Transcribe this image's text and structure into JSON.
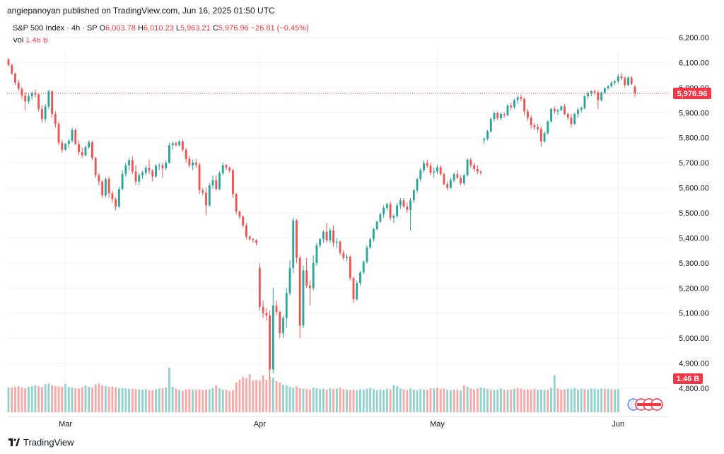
{
  "publisher": "angiepanoyan published on TradingView.com, Jun 16, 2025 01:50 UTC",
  "legend": {
    "symbol": "S&P 500 Index · 4h · SP",
    "o_label": "O",
    "o_value": "6,003.78",
    "h_label": "H",
    "h_value": "6,010.23",
    "l_label": "L",
    "l_value": "5,963.21",
    "c_label": "C",
    "c_value": "5,976.96",
    "change": "−26.81 (−0.45%)",
    "vol_label": "Vol",
    "vol_value": "1.46 B"
  },
  "price_badge": "5,976.96",
  "volume_badge": "1.46 B",
  "footer_brand": "TradingView",
  "colors": {
    "up": "#26a69a",
    "down": "#ef5350",
    "vol_up": "#92d2cc",
    "vol_down": "#f7a9a7",
    "badge": "#f23645"
  },
  "chart_data": {
    "type": "candlestick",
    "ylim": [
      4760,
      6260
    ],
    "yticks": [
      "6,200.00",
      "6,100.00",
      "6,000.00",
      "5,900.00",
      "5,800.00",
      "5,700.00",
      "5,600.00",
      "5,500.00",
      "5,400.00",
      "5,300.00",
      "5,200.00",
      "5,100.00",
      "5,000.00",
      "4,900.00",
      "4,800.00"
    ],
    "ytick_values": [
      6200,
      6100,
      6000,
      5900,
      5800,
      5700,
      5600,
      5500,
      5400,
      5300,
      5200,
      5100,
      5000,
      4900,
      4800
    ],
    "xticks": [
      {
        "label": "Mar",
        "index": 17
      },
      {
        "label": "Apr",
        "index": 75
      },
      {
        "label": "May",
        "index": 128
      },
      {
        "label": "Jun",
        "index": 182
      }
    ],
    "last_close": 5976.96,
    "candles_ohlc": [
      [
        6112,
        6118,
        6085,
        6090
      ],
      [
        6090,
        6096,
        6050,
        6056
      ],
      [
        6056,
        6060,
        6010,
        6020
      ],
      [
        6020,
        6030,
        5985,
        5995
      ],
      [
        5995,
        6002,
        5955,
        5968
      ],
      [
        5968,
        5980,
        5910,
        5945
      ],
      [
        5945,
        5975,
        5935,
        5965
      ],
      [
        5965,
        5985,
        5950,
        5978
      ],
      [
        5978,
        5992,
        5960,
        5972
      ],
      [
        5972,
        5976,
        5905,
        5915
      ],
      [
        5915,
        5930,
        5860,
        5875
      ],
      [
        5875,
        5935,
        5862,
        5925
      ],
      [
        5925,
        5992,
        5915,
        5985
      ],
      [
        5985,
        5990,
        5880,
        5895
      ],
      [
        5895,
        5905,
        5840,
        5855
      ],
      [
        5855,
        5865,
        5770,
        5780
      ],
      [
        5780,
        5792,
        5740,
        5752
      ],
      [
        5752,
        5780,
        5748,
        5775
      ],
      [
        5775,
        5795,
        5760,
        5788
      ],
      [
        5788,
        5840,
        5780,
        5830
      ],
      [
        5830,
        5838,
        5770,
        5775
      ],
      [
        5775,
        5790,
        5730,
        5742
      ],
      [
        5742,
        5760,
        5720,
        5730
      ],
      [
        5730,
        5770,
        5725,
        5762
      ],
      [
        5762,
        5790,
        5755,
        5782
      ],
      [
        5782,
        5788,
        5710,
        5720
      ],
      [
        5720,
        5724,
        5640,
        5650
      ],
      [
        5650,
        5660,
        5610,
        5625
      ],
      [
        5625,
        5632,
        5560,
        5570
      ],
      [
        5570,
        5642,
        5560,
        5635
      ],
      [
        5635,
        5645,
        5560,
        5578
      ],
      [
        5578,
        5588,
        5540,
        5555
      ],
      [
        5555,
        5562,
        5510,
        5525
      ],
      [
        5525,
        5605,
        5520,
        5595
      ],
      [
        5595,
        5670,
        5590,
        5655
      ],
      [
        5655,
        5700,
        5645,
        5690
      ],
      [
        5690,
        5720,
        5670,
        5710
      ],
      [
        5710,
        5725,
        5655,
        5665
      ],
      [
        5665,
        5690,
        5610,
        5625
      ],
      [
        5625,
        5660,
        5610,
        5650
      ],
      [
        5650,
        5668,
        5635,
        5660
      ],
      [
        5660,
        5690,
        5650,
        5680
      ],
      [
        5680,
        5712,
        5655,
        5668
      ],
      [
        5668,
        5675,
        5625,
        5645
      ],
      [
        5645,
        5695,
        5640,
        5688
      ],
      [
        5688,
        5698,
        5670,
        5690
      ],
      [
        5690,
        5700,
        5640,
        5678
      ],
      [
        5678,
        5710,
        5670,
        5700
      ],
      [
        5700,
        5780,
        5695,
        5770
      ],
      [
        5770,
        5785,
        5752,
        5778
      ],
      [
        5778,
        5784,
        5765,
        5770
      ],
      [
        5770,
        5790,
        5765,
        5785
      ],
      [
        5785,
        5792,
        5745,
        5752
      ],
      [
        5752,
        5760,
        5700,
        5715
      ],
      [
        5715,
        5728,
        5680,
        5690
      ],
      [
        5690,
        5712,
        5670,
        5700
      ],
      [
        5700,
        5715,
        5680,
        5692
      ],
      [
        5692,
        5700,
        5575,
        5590
      ],
      [
        5590,
        5600,
        5570,
        5580
      ],
      [
        5580,
        5600,
        5490,
        5530
      ],
      [
        5530,
        5620,
        5525,
        5610
      ],
      [
        5610,
        5650,
        5595,
        5630
      ],
      [
        5630,
        5650,
        5590,
        5595
      ],
      [
        5595,
        5665,
        5590,
        5658
      ],
      [
        5658,
        5700,
        5650,
        5690
      ],
      [
        5690,
        5695,
        5670,
        5680
      ],
      [
        5680,
        5685,
        5660,
        5670
      ],
      [
        5670,
        5675,
        5560,
        5575
      ],
      [
        5575,
        5580,
        5495,
        5505
      ],
      [
        5505,
        5510,
        5475,
        5485
      ],
      [
        5485,
        5490,
        5440,
        5450
      ],
      [
        5450,
        5460,
        5395,
        5405
      ],
      [
        5405,
        5410,
        5390,
        5395
      ],
      [
        5395,
        5400,
        5380,
        5390
      ],
      [
        5390,
        5395,
        5370,
        5380
      ],
      [
        5280,
        5300,
        5110,
        5125
      ],
      [
        5125,
        5150,
        5080,
        5100
      ],
      [
        5100,
        5120,
        5070,
        5090
      ],
      [
        5090,
        5110,
        4840,
        4875
      ],
      [
        4875,
        5200,
        4860,
        5130
      ],
      [
        5130,
        5150,
        5090,
        5105
      ],
      [
        5105,
        5110,
        5000,
        5020
      ],
      [
        5020,
        5090,
        5000,
        5080
      ],
      [
        5080,
        5200,
        5040,
        5180
      ],
      [
        5180,
        5310,
        5170,
        5280
      ],
      [
        5280,
        5480,
        5260,
        5470
      ],
      [
        5470,
        5475,
        5300,
        5320
      ],
      [
        5320,
        5330,
        5000,
        5050
      ],
      [
        5050,
        5290,
        5040,
        5270
      ],
      [
        5270,
        5320,
        5200,
        5210
      ],
      [
        5210,
        5230,
        5130,
        5200
      ],
      [
        5200,
        5330,
        5190,
        5300
      ],
      [
        5300,
        5380,
        5290,
        5370
      ],
      [
        5370,
        5400,
        5360,
        5395
      ],
      [
        5395,
        5430,
        5380,
        5425
      ],
      [
        5425,
        5460,
        5380,
        5390
      ],
      [
        5390,
        5440,
        5380,
        5430
      ],
      [
        5430,
        5450,
        5365,
        5380
      ],
      [
        5380,
        5400,
        5360,
        5385
      ],
      [
        5385,
        5390,
        5330,
        5340
      ],
      [
        5340,
        5350,
        5310,
        5320
      ],
      [
        5320,
        5335,
        5305,
        5325
      ],
      [
        5325,
        5330,
        5230,
        5240
      ],
      [
        5240,
        5245,
        5140,
        5155
      ],
      [
        5155,
        5230,
        5150,
        5220
      ],
      [
        5220,
        5268,
        5210,
        5262
      ],
      [
        5262,
        5310,
        5255,
        5305
      ],
      [
        5305,
        5370,
        5298,
        5362
      ],
      [
        5362,
        5400,
        5355,
        5395
      ],
      [
        5395,
        5440,
        5385,
        5435
      ],
      [
        5435,
        5470,
        5430,
        5465
      ],
      [
        5465,
        5500,
        5460,
        5495
      ],
      [
        5495,
        5530,
        5480,
        5520
      ],
      [
        5520,
        5540,
        5510,
        5535
      ],
      [
        5535,
        5545,
        5470,
        5480
      ],
      [
        5480,
        5495,
        5460,
        5488
      ],
      [
        5488,
        5540,
        5480,
        5530
      ],
      [
        5530,
        5560,
        5515,
        5550
      ],
      [
        5550,
        5560,
        5520,
        5525
      ],
      [
        5525,
        5540,
        5500,
        5512
      ],
      [
        5512,
        5560,
        5430,
        5550
      ],
      [
        5550,
        5595,
        5540,
        5590
      ],
      [
        5590,
        5640,
        5580,
        5635
      ],
      [
        5635,
        5680,
        5625,
        5670
      ],
      [
        5670,
        5710,
        5660,
        5698
      ],
      [
        5698,
        5712,
        5680,
        5688
      ],
      [
        5688,
        5700,
        5650,
        5660
      ],
      [
        5660,
        5680,
        5640,
        5665
      ],
      [
        5665,
        5690,
        5655,
        5682
      ],
      [
        5682,
        5690,
        5648,
        5655
      ],
      [
        5655,
        5660,
        5610,
        5615
      ],
      [
        5615,
        5625,
        5590,
        5600
      ],
      [
        5600,
        5640,
        5595,
        5630
      ],
      [
        5630,
        5660,
        5620,
        5655
      ],
      [
        5655,
        5670,
        5635,
        5640
      ],
      [
        5640,
        5650,
        5610,
        5618
      ],
      [
        5618,
        5655,
        5610,
        5650
      ],
      [
        5650,
        5718,
        5645,
        5712
      ],
      [
        5712,
        5720,
        5680,
        5690
      ],
      [
        5690,
        5700,
        5665,
        5675
      ],
      [
        5675,
        5690,
        5655,
        5665
      ],
      [
        5665,
        5670,
        5650,
        5660
      ],
      [
        5790,
        5800,
        5775,
        5795
      ],
      [
        5795,
        5830,
        5790,
        5825
      ],
      [
        5825,
        5880,
        5820,
        5875
      ],
      [
        5875,
        5905,
        5865,
        5898
      ],
      [
        5898,
        5905,
        5870,
        5878
      ],
      [
        5878,
        5900,
        5870,
        5895
      ],
      [
        5895,
        5902,
        5880,
        5890
      ],
      [
        5890,
        5935,
        5885,
        5928
      ],
      [
        5928,
        5940,
        5910,
        5922
      ],
      [
        5922,
        5955,
        5915,
        5950
      ],
      [
        5950,
        5970,
        5935,
        5962
      ],
      [
        5962,
        5972,
        5945,
        5955
      ],
      [
        5955,
        5960,
        5890,
        5905
      ],
      [
        5905,
        5915,
        5868,
        5880
      ],
      [
        5880,
        5890,
        5835,
        5850
      ],
      [
        5850,
        5860,
        5830,
        5842
      ],
      [
        5842,
        5855,
        5820,
        5835
      ],
      [
        5835,
        5845,
        5765,
        5785
      ],
      [
        5785,
        5825,
        5780,
        5818
      ],
      [
        5818,
        5870,
        5812,
        5865
      ],
      [
        5865,
        5920,
        5860,
        5915
      ],
      [
        5915,
        5925,
        5895,
        5905
      ],
      [
        5905,
        5915,
        5890,
        5910
      ],
      [
        5910,
        5930,
        5905,
        5925
      ],
      [
        5925,
        5935,
        5890,
        5895
      ],
      [
        5895,
        5900,
        5870,
        5880
      ],
      [
        5880,
        5895,
        5840,
        5855
      ],
      [
        5855,
        5900,
        5850,
        5895
      ],
      [
        5895,
        5920,
        5880,
        5912
      ],
      [
        5912,
        5925,
        5900,
        5918
      ],
      [
        5918,
        5970,
        5912,
        5965
      ],
      [
        5965,
        5985,
        5955,
        5978
      ],
      [
        5978,
        5990,
        5965,
        5985
      ],
      [
        5985,
        5992,
        5970,
        5980
      ],
      [
        5980,
        5990,
        5915,
        5950
      ],
      [
        5950,
        5985,
        5945,
        5980
      ],
      [
        5980,
        6000,
        5975,
        5998
      ],
      [
        5998,
        6010,
        5990,
        6005
      ],
      [
        6005,
        6025,
        6000,
        6020
      ],
      [
        6020,
        6030,
        6010,
        6025
      ],
      [
        6025,
        6055,
        6015,
        6045
      ],
      [
        6045,
        6058,
        6030,
        6038
      ],
      [
        6038,
        6045,
        6000,
        6010
      ],
      [
        6010,
        6045,
        6005,
        6040
      ],
      [
        6040,
        6045,
        6010,
        6015
      ],
      [
        6003.78,
        6010.23,
        5963.21,
        5976.96
      ]
    ],
    "volume_up": [
      1,
      0,
      0,
      0,
      0,
      0,
      1,
      1,
      1,
      0,
      0,
      1,
      1,
      0,
      0,
      0,
      0,
      1,
      1,
      1,
      0,
      0,
      0,
      1,
      1,
      0,
      0,
      0,
      0,
      1,
      0,
      0,
      0,
      1,
      1,
      1,
      1,
      0,
      0,
      1,
      1,
      1,
      0,
      0,
      1,
      1,
      0,
      1,
      1,
      1,
      0,
      1,
      0,
      0,
      0,
      1,
      0,
      0,
      0,
      0,
      1,
      1,
      0,
      1,
      1,
      0,
      0,
      0,
      0,
      0,
      0,
      0,
      0,
      0,
      0,
      0,
      0,
      0,
      0,
      1,
      0,
      0,
      1,
      1,
      1,
      1,
      0,
      0,
      1,
      0,
      0,
      1,
      1,
      1,
      1,
      0,
      1,
      0,
      1,
      0,
      0,
      1,
      0,
      0,
      1,
      1,
      1,
      1,
      1,
      1,
      1,
      1,
      1,
      1,
      0,
      1,
      1,
      1,
      0,
      0,
      1,
      1,
      1,
      1,
      1,
      0,
      0,
      1,
      0,
      0,
      0,
      1,
      1,
      0,
      0,
      1,
      0,
      1,
      0,
      0,
      0,
      1,
      1,
      1,
      0,
      1,
      1,
      1,
      0,
      1,
      0,
      1,
      0,
      0,
      0,
      0,
      0,
      0,
      1,
      1,
      1,
      0,
      1,
      1,
      0,
      0,
      0,
      1,
      1,
      1,
      1,
      1,
      0,
      1,
      1,
      1,
      1,
      1,
      0,
      1,
      0,
      1,
      1,
      1,
      0
    ],
    "volume_b": [
      0.87,
      0.88,
      0.9,
      0.92,
      0.88,
      0.85,
      0.9,
      0.92,
      0.95,
      0.92,
      0.9,
      0.99,
      1.02,
      0.95,
      0.93,
      0.91,
      0.9,
      1.0,
      0.9,
      0.88,
      0.85,
      0.84,
      0.89,
      0.95,
      0.9,
      0.87,
      0.99,
      1.02,
      0.95,
      0.93,
      0.9,
      0.91,
      0.88,
      0.85,
      0.86,
      0.84,
      0.83,
      0.83,
      0.82,
      0.81,
      0.8,
      0.82,
      0.79,
      0.78,
      0.81,
      0.84,
      0.86,
      0.88,
      1.58,
      0.9,
      0.83,
      0.8,
      0.76,
      0.8,
      0.82,
      0.8,
      0.79,
      0.81,
      0.79,
      0.8,
      0.81,
      0.85,
      0.95,
      0.85,
      0.8,
      0.79,
      0.76,
      0.78,
      1.05,
      1.15,
      1.25,
      1.2,
      1.35,
      1.12,
      1.15,
      1.12,
      1.3,
      1.15,
      1.25,
      1.22,
      1.1,
      1.05,
      0.98,
      0.95,
      0.9,
      0.88,
      0.92,
      0.85,
      0.83,
      0.82,
      0.8,
      0.87,
      0.85,
      0.82,
      0.83,
      0.8,
      0.85,
      0.82,
      0.84,
      0.87,
      0.82,
      0.8,
      0.79,
      0.8,
      0.78,
      0.81,
      0.8,
      0.82,
      0.86,
      0.82,
      0.78,
      0.8,
      0.79,
      0.83,
      0.81,
      0.96,
      0.92,
      0.84,
      0.81,
      0.79,
      0.84,
      0.8,
      0.78,
      0.82,
      0.8,
      0.79,
      0.85,
      0.84,
      0.87,
      0.83,
      0.84,
      0.79,
      0.78,
      0.8,
      0.8,
      0.77,
      0.95,
      0.9,
      0.84,
      0.81,
      0.84,
      0.88,
      0.85,
      0.82,
      0.8,
      0.79,
      0.8,
      0.84,
      0.8,
      0.79,
      0.8,
      0.83,
      0.86,
      0.84,
      0.8,
      0.81,
      0.8,
      0.83,
      0.79,
      0.8,
      0.79,
      0.8,
      0.86,
      1.31,
      0.84,
      0.8,
      0.81,
      0.83,
      0.82,
      0.86,
      0.81,
      0.83,
      0.82,
      0.8,
      0.84,
      0.83,
      0.81,
      0.84,
      0.83,
      0.82,
      0.81,
      0.8,
      0.82
    ]
  }
}
